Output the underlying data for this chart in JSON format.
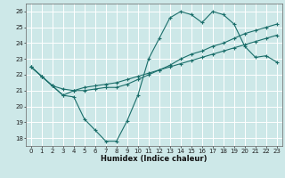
{
  "xlabel": "Humidex (Indice chaleur)",
  "ylabel": "",
  "bg_color": "#cde8e8",
  "grid_color": "#ffffff",
  "line_color": "#1a6e6a",
  "xlim": [
    -0.5,
    23.5
  ],
  "ylim": [
    17.5,
    26.5
  ],
  "xticks": [
    0,
    1,
    2,
    3,
    4,
    5,
    6,
    7,
    8,
    9,
    10,
    11,
    12,
    13,
    14,
    15,
    16,
    17,
    18,
    19,
    20,
    21,
    22,
    23
  ],
  "yticks": [
    18,
    19,
    20,
    21,
    22,
    23,
    24,
    25,
    26
  ],
  "line1_x": [
    0,
    1,
    2,
    3,
    4,
    5,
    6,
    7,
    8,
    9,
    10,
    11,
    12,
    13,
    14,
    15,
    16,
    17,
    18,
    19,
    20,
    21,
    22,
    23
  ],
  "line1_y": [
    22.5,
    21.9,
    21.3,
    20.7,
    20.6,
    19.2,
    18.5,
    17.8,
    17.8,
    19.1,
    20.7,
    23.0,
    24.3,
    25.6,
    26.0,
    25.8,
    25.3,
    26.0,
    25.8,
    25.2,
    23.8,
    23.1,
    23.2,
    22.8
  ],
  "line2_x": [
    0,
    1,
    2,
    3,
    4,
    5,
    6,
    7,
    8,
    9,
    10,
    11,
    12,
    13,
    14,
    15,
    16,
    17,
    18,
    19,
    20,
    21,
    22,
    23
  ],
  "line2_y": [
    22.5,
    21.9,
    21.3,
    21.1,
    21.0,
    21.0,
    21.1,
    21.2,
    21.2,
    21.4,
    21.7,
    22.0,
    22.3,
    22.6,
    23.0,
    23.3,
    23.5,
    23.8,
    24.0,
    24.3,
    24.6,
    24.8,
    25.0,
    25.2
  ],
  "line3_x": [
    0,
    1,
    2,
    3,
    4,
    5,
    6,
    7,
    8,
    9,
    10,
    11,
    12,
    13,
    14,
    15,
    16,
    17,
    18,
    19,
    20,
    21,
    22,
    23
  ],
  "line3_y": [
    22.5,
    21.9,
    21.3,
    20.7,
    21.0,
    21.2,
    21.3,
    21.4,
    21.5,
    21.7,
    21.9,
    22.1,
    22.3,
    22.5,
    22.7,
    22.9,
    23.1,
    23.3,
    23.5,
    23.7,
    23.9,
    24.1,
    24.3,
    24.5
  ],
  "tick_fontsize": 5,
  "xlabel_fontsize": 6,
  "marker_size": 3,
  "linewidth": 0.8
}
